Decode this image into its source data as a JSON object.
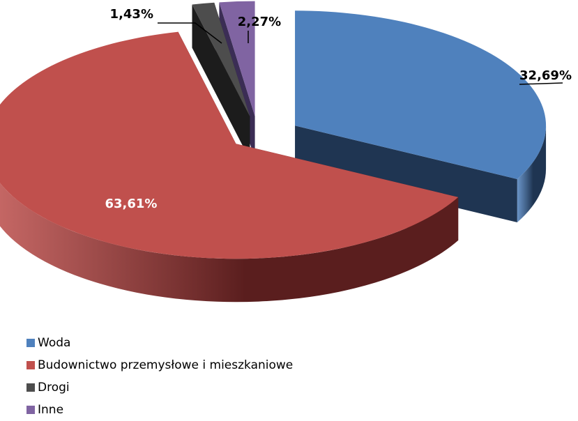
{
  "chart_data": {
    "type": "pie",
    "title": "",
    "categories": [
      "Woda",
      "Budownictwo przemysłowe i mieszkaniowe",
      "Drogi",
      "Inne"
    ],
    "values": [
      32.69,
      63.61,
      1.43,
      2.27
    ],
    "data_labels": [
      "32,69%",
      "63,61%",
      "1,43%",
      "2,27%"
    ],
    "colors": [
      "#4f81bd",
      "#c0504d",
      "#4d4d4d",
      "#8064a2"
    ],
    "side_colors": [
      "#1f3552",
      "#5a1e1e",
      "#1c1c1c",
      "#3b2d55"
    ],
    "style": "3d-exploded",
    "legend_position": "bottom-left"
  }
}
